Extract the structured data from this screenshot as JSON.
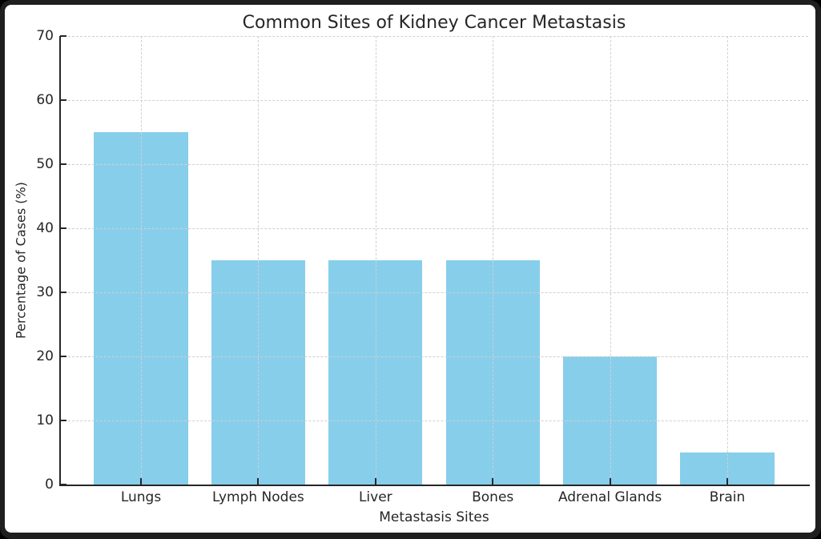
{
  "chart_data": {
    "type": "bar",
    "title": "Common Sites of Kidney Cancer Metastasis",
    "xlabel": "Metastasis Sites",
    "ylabel": "Percentage of Cases (%)",
    "categories": [
      "Lungs",
      "Lymph Nodes",
      "Liver",
      "Bones",
      "Adrenal Glands",
      "Brain"
    ],
    "values": [
      55,
      35,
      35,
      35,
      20,
      5
    ],
    "ylim": [
      0,
      70
    ],
    "yticks": [
      0,
      10,
      20,
      30,
      40,
      50,
      60,
      70
    ],
    "grid": "dashed, both axes, drawn above bars",
    "legend_position": "none",
    "colors": {
      "bar": "#87CEEB",
      "text": "#262626",
      "grid": "#d0d0d0",
      "spine": "#262626",
      "plot_background": "#ffffff",
      "frame": "#1f1f1f"
    }
  }
}
